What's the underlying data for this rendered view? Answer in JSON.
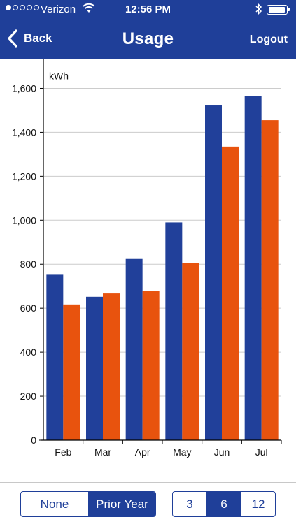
{
  "status_bar": {
    "carrier": "Verizon",
    "time": "12:56 PM",
    "signal_bars": 1,
    "icons": [
      "signal-dots-icon",
      "wifi-icon",
      "bluetooth-icon",
      "battery-icon"
    ]
  },
  "nav": {
    "back_label": "Back",
    "title": "Usage",
    "logout_label": "Logout"
  },
  "colors": {
    "primary": "#1f3f99",
    "current_series": "#21409a",
    "prior_series": "#e8530e",
    "grid": "#cccccc"
  },
  "chart_data": {
    "type": "bar",
    "ylabel": "kWh",
    "xlabel": "",
    "ylim": [
      0,
      1700
    ],
    "yticks": [
      0,
      200,
      400,
      600,
      800,
      1000,
      1200,
      1400,
      1600
    ],
    "ytick_labels": [
      "0",
      "200",
      "400",
      "600",
      "800",
      "1,000",
      "1,200",
      "1,400",
      "1,600"
    ],
    "categories": [
      "Feb",
      "Mar",
      "Apr",
      "May",
      "Jun",
      "Jul"
    ],
    "series": [
      {
        "values": [
          755,
          652,
          827,
          990,
          1522,
          1566
        ]
      },
      {
        "values": [
          617,
          667,
          678,
          805,
          1335,
          1455
        ]
      }
    ],
    "grid": true,
    "legend": "none"
  },
  "controls": {
    "compare": {
      "options": [
        "None",
        "Prior Year"
      ],
      "selected": 1
    },
    "range": {
      "options": [
        "3",
        "6",
        "12"
      ],
      "selected": 1
    }
  }
}
